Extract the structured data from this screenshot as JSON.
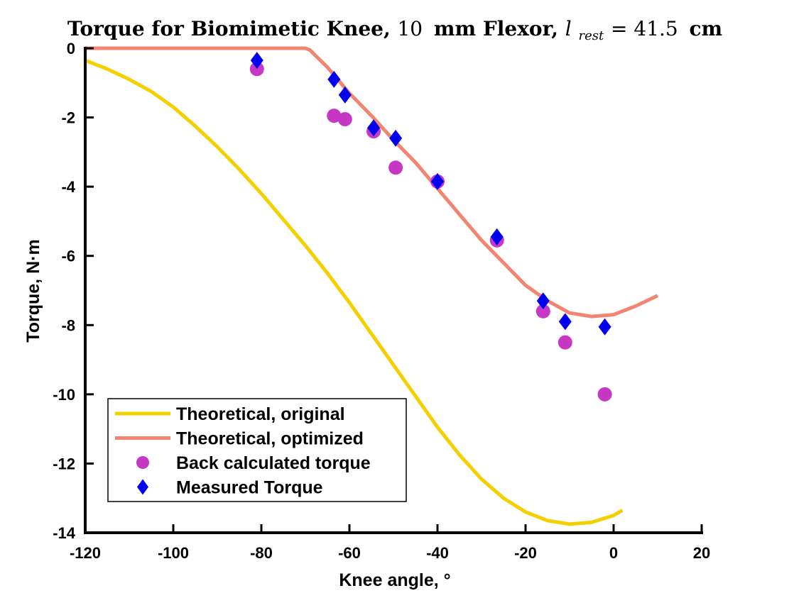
{
  "chart_data": {
    "type": "line",
    "title": {
      "prefix": "Torque for Biomimetic Knee, ",
      "size_value": "10",
      "size_unit": "mm",
      "middle": " Flexor, ",
      "var_base": "l",
      "var_sub": "rest",
      "equals": " = ",
      "value": "41.5",
      "value_unit": "cm"
    },
    "xlabel": "Knee angle, °",
    "ylabel": "Torque, N·m",
    "xlim": [
      -120,
      20
    ],
    "ylim": [
      -14,
      0
    ],
    "xticks": [
      -120,
      -100,
      -80,
      -60,
      -40,
      -20,
      0,
      20
    ],
    "yticks": [
      0,
      -2,
      -4,
      -6,
      -8,
      -10,
      -12,
      -14
    ],
    "grid": false,
    "legend_position": "bottom-left",
    "series": [
      {
        "name": "Theoretical, original",
        "style": "line",
        "color": "#F5D000",
        "x": [
          -120,
          -115,
          -110,
          -105,
          -100,
          -95,
          -90,
          -85,
          -80,
          -75,
          -70,
          -65,
          -60,
          -55,
          -50,
          -45,
          -40,
          -35,
          -30,
          -25,
          -20,
          -15,
          -10,
          -5,
          0,
          2
        ],
        "y": [
          -0.35,
          -0.6,
          -0.9,
          -1.25,
          -1.7,
          -2.25,
          -2.85,
          -3.5,
          -4.2,
          -4.95,
          -5.7,
          -6.5,
          -7.35,
          -8.25,
          -9.15,
          -10.05,
          -10.95,
          -11.75,
          -12.45,
          -13.0,
          -13.4,
          -13.65,
          -13.75,
          -13.7,
          -13.5,
          -13.35
        ]
      },
      {
        "name": "Theoretical, optimized",
        "style": "line",
        "color": "#F28572",
        "x": [
          -120,
          -100,
          -80,
          -70,
          -69,
          -65,
          -60,
          -55,
          -50,
          -45,
          -40,
          -35,
          -30,
          -25,
          -20,
          -15,
          -10,
          -5,
          0,
          5,
          10
        ],
        "y": [
          0,
          0,
          0,
          0,
          -0.05,
          -0.55,
          -1.3,
          -1.95,
          -2.65,
          -3.3,
          -4.05,
          -4.8,
          -5.55,
          -6.2,
          -6.85,
          -7.3,
          -7.65,
          -7.75,
          -7.7,
          -7.45,
          -7.15
        ]
      },
      {
        "name": "Back calculated torque",
        "style": "marker-circle",
        "color": "#C637C3",
        "x": [
          -81,
          -63.5,
          -61,
          -54.5,
          -49.5,
          -40,
          -26.5,
          -16,
          -11,
          -2
        ],
        "y": [
          -0.6,
          -1.95,
          -2.05,
          -2.4,
          -3.45,
          -3.85,
          -5.55,
          -7.6,
          -8.5,
          -10.0
        ]
      },
      {
        "name": "Measured Torque",
        "style": "marker-diamond",
        "color": "#0000EE",
        "x": [
          -81,
          -63.5,
          -61,
          -54.5,
          -49.5,
          -40,
          -26.5,
          -16,
          -11,
          -2
        ],
        "y": [
          -0.35,
          -0.9,
          -1.35,
          -2.3,
          -2.6,
          -3.85,
          -5.45,
          -7.3,
          -7.9,
          -8.05
        ]
      }
    ]
  }
}
